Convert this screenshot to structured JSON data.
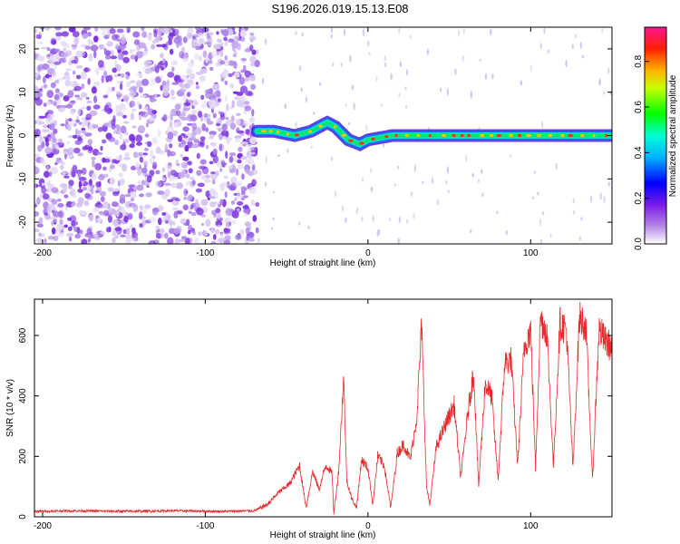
{
  "title": "S196.2026.019.15.13.E08",
  "chart_data": [
    {
      "type": "heatmap",
      "xlabel": "Height of straight line (km)",
      "ylabel": "Frequency (Hz)",
      "xlim": [
        -205,
        150
      ],
      "ylim": [
        -25,
        25
      ],
      "x_ticks": [
        -200,
        -100,
        0,
        100
      ],
      "y_ticks": [
        -20,
        -10,
        0,
        10,
        20
      ],
      "noise_region_x": [
        -205,
        -68
      ],
      "ridge": {
        "start_x": -68,
        "end_x": 150,
        "frequency_points": [
          [
            -68,
            1
          ],
          [
            -58,
            1
          ],
          [
            -45,
            0
          ],
          [
            -35,
            1
          ],
          [
            -25,
            3
          ],
          [
            -20,
            2
          ],
          [
            -12,
            -1
          ],
          [
            -5,
            -2
          ],
          [
            0,
            -1
          ],
          [
            15,
            0
          ],
          [
            40,
            0
          ],
          [
            80,
            0
          ],
          [
            120,
            0
          ],
          [
            150,
            0
          ]
        ]
      },
      "colorbar": {
        "label": "Normalized spectral amplitude",
        "ticks": [
          "0.0",
          "0.2",
          "0.4",
          "0.6",
          "0.8"
        ],
        "range": [
          0,
          0.95
        ],
        "colors": [
          "#ffffff",
          "#8a2be2",
          "#0000ff",
          "#00ffff",
          "#00ff00",
          "#ffff00",
          "#ff8000",
          "#ff0000",
          "#ff1493"
        ]
      }
    },
    {
      "type": "line",
      "xlabel": "Height of straight line (km)",
      "ylabel": "SNR (10 * v/v)",
      "xlim": [
        -205,
        150
      ],
      "ylim": [
        0,
        720
      ],
      "x_ticks": [
        -200,
        -100,
        0,
        100
      ],
      "y_ticks": [
        0,
        200,
        400,
        600
      ],
      "color": "#e8282a",
      "series": [
        {
          "name": "SNR",
          "points": [
            [
              -205,
              18
            ],
            [
              -180,
              20
            ],
            [
              -150,
              18
            ],
            [
              -120,
              20
            ],
            [
              -90,
              18
            ],
            [
              -70,
              20
            ],
            [
              -62,
              40
            ],
            [
              -55,
              80
            ],
            [
              -48,
              110
            ],
            [
              -42,
              170
            ],
            [
              -38,
              30
            ],
            [
              -34,
              150
            ],
            [
              -30,
              90
            ],
            [
              -26,
              170
            ],
            [
              -24,
              160
            ],
            [
              -22,
              140
            ],
            [
              -21,
              10
            ],
            [
              -18,
              150
            ],
            [
              -15,
              460
            ],
            [
              -13,
              120
            ],
            [
              -10,
              60
            ],
            [
              -7,
              30
            ],
            [
              -4,
              190
            ],
            [
              0,
              160
            ],
            [
              3,
              40
            ],
            [
              6,
              200
            ],
            [
              10,
              170
            ],
            [
              14,
              30
            ],
            [
              18,
              210
            ],
            [
              22,
              240
            ],
            [
              26,
              190
            ],
            [
              30,
              330
            ],
            [
              33,
              630
            ],
            [
              36,
              100
            ],
            [
              38,
              40
            ],
            [
              42,
              230
            ],
            [
              48,
              310
            ],
            [
              53,
              370
            ],
            [
              57,
              130
            ],
            [
              62,
              370
            ],
            [
              65,
              480
            ],
            [
              68,
              100
            ],
            [
              72,
              440
            ],
            [
              76,
              400
            ],
            [
              80,
              120
            ],
            [
              84,
              510
            ],
            [
              88,
              520
            ],
            [
              92,
              170
            ],
            [
              96,
              560
            ],
            [
              100,
              620
            ],
            [
              103,
              160
            ],
            [
              106,
              660
            ],
            [
              110,
              610
            ],
            [
              114,
              170
            ],
            [
              118,
              640
            ],
            [
              122,
              620
            ],
            [
              126,
              160
            ],
            [
              130,
              660
            ],
            [
              134,
              630
            ],
            [
              138,
              120
            ],
            [
              142,
              620
            ],
            [
              146,
              580
            ],
            [
              150,
              560
            ]
          ]
        }
      ]
    }
  ]
}
